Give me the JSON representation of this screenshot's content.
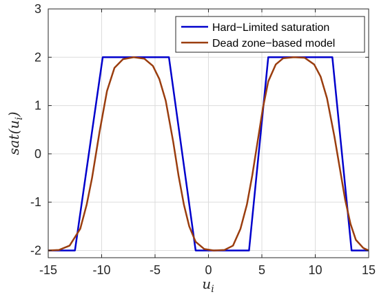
{
  "chart_data": {
    "type": "line",
    "title": "",
    "xlabel": "u_i",
    "ylabel": "sat(u_i)",
    "xlim": [
      -15,
      15
    ],
    "ylim": [
      -2.15,
      3
    ],
    "xticks": [
      -15,
      -10,
      -5,
      0,
      5,
      10,
      15
    ],
    "yticks": [
      -2,
      -1,
      0,
      1,
      2,
      3
    ],
    "grid": true,
    "legend_position": "top-right",
    "series": [
      {
        "name": "Hard−Limited saturation",
        "color": "#0000CC",
        "x": [
          -15,
          -12.5,
          -9.9,
          -9.7,
          -4.0,
          -3.7,
          -1.2,
          3.5,
          3.8,
          5.6,
          11.3,
          11.6,
          13.4,
          15
        ],
        "y": [
          -2,
          -2,
          2,
          2,
          2,
          2,
          -2,
          -2,
          -2,
          2,
          2,
          2,
          -2,
          -2
        ]
      },
      {
        "name": "Dead zone−based model",
        "color": "#9A3D0E",
        "x": [
          -15,
          -14,
          -13,
          -12,
          -11.4,
          -10.9,
          -10.2,
          -9.5,
          -8.8,
          -8,
          -7,
          -6,
          -5.2,
          -4.6,
          -4.0,
          -3.3,
          -2.8,
          -2.3,
          -1.8,
          -1.2,
          -0.4,
          0.5,
          1.5,
          2.3,
          3.0,
          3.6,
          4.1,
          4.6,
          5.1,
          5.6,
          6.3,
          7,
          8,
          9,
          9.9,
          10.5,
          11.1,
          11.8,
          12.3,
          12.8,
          13.3,
          13.8,
          14.5,
          15
        ],
        "y": [
          -2,
          -1.99,
          -1.9,
          -1.55,
          -1.05,
          -0.5,
          0.45,
          1.3,
          1.78,
          1.96,
          2,
          1.97,
          1.82,
          1.55,
          1.1,
          0.25,
          -0.45,
          -1.05,
          -1.5,
          -1.82,
          -1.97,
          -2,
          -1.99,
          -1.9,
          -1.55,
          -1.05,
          -0.45,
          0.25,
          0.95,
          1.5,
          1.85,
          1.98,
          2,
          1.99,
          1.85,
          1.6,
          1.15,
          0.35,
          -0.3,
          -0.95,
          -1.45,
          -1.78,
          -1.95,
          -2
        ]
      }
    ]
  }
}
